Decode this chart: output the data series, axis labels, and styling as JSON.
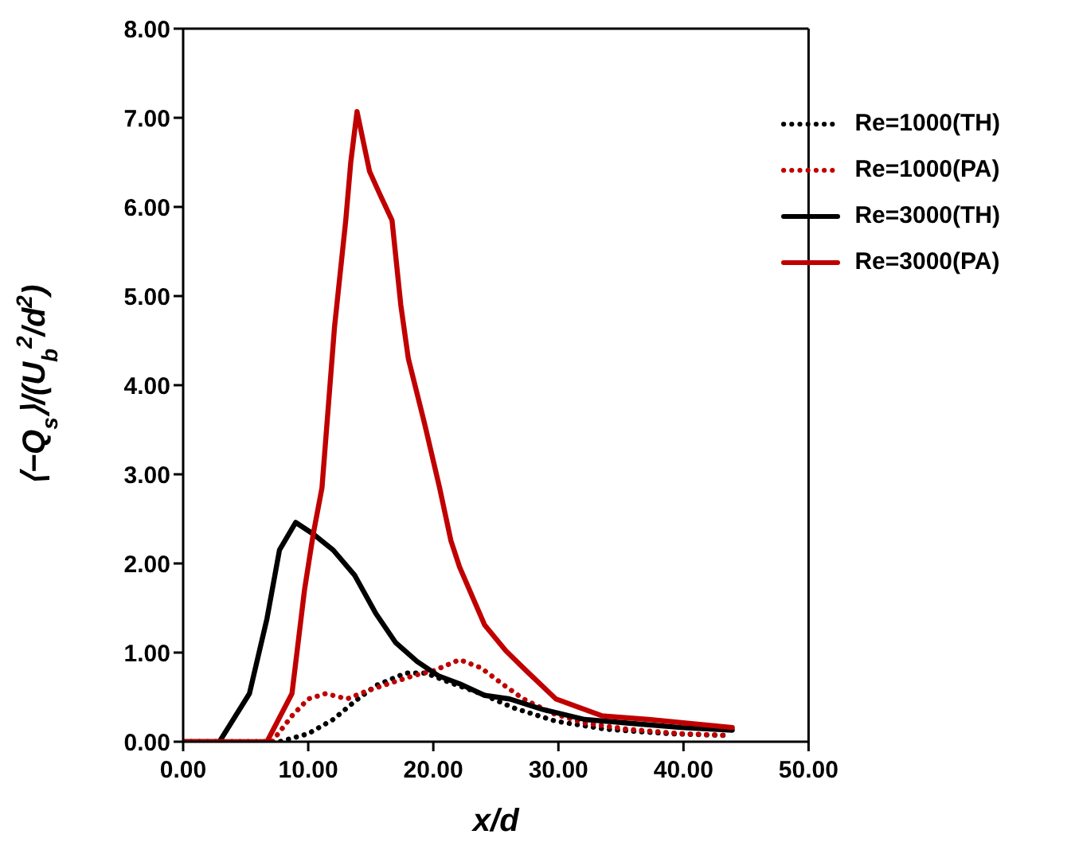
{
  "chart_data": {
    "type": "line",
    "xlabel": "x/d",
    "ylabel": "⟨−Q$_{s}$⟩/(U$_{b}$$^{2}$/d$^{2}$)",
    "xlim": [
      0,
      50
    ],
    "xticks": [
      {
        "value": 0,
        "label": "0.00"
      },
      {
        "value": 10,
        "label": "10.00"
      },
      {
        "value": 20,
        "label": "20.00"
      },
      {
        "value": 30,
        "label": "30.00"
      },
      {
        "value": 40,
        "label": "40.00"
      },
      {
        "value": 50,
        "label": "50.00"
      }
    ],
    "ylim": [
      0,
      8
    ],
    "yticks": [
      {
        "value": 0,
        "label": "0.00"
      },
      {
        "value": 1,
        "label": "1.00"
      },
      {
        "value": 2,
        "label": "2.00"
      },
      {
        "value": 3,
        "label": "3.00"
      },
      {
        "value": 4,
        "label": "4.00"
      },
      {
        "value": 5,
        "label": "5.00"
      },
      {
        "value": 6,
        "label": "6.00"
      },
      {
        "value": 7,
        "label": "7.00"
      },
      {
        "value": 8,
        "label": "8.00"
      }
    ],
    "legend": "top right",
    "marker": "none",
    "series": [
      {
        "name": "Re=1000(TH)",
        "color": "#000000",
        "line_style": "dotted",
        "x": [
          0,
          7.7,
          10.0,
          12.0,
          13.7,
          15.4,
          17.8,
          19.4,
          21.4,
          23.8,
          26.4,
          29.8,
          33.8,
          38.9,
          43.6
        ],
        "values": [
          0,
          0,
          0.09,
          0.25,
          0.45,
          0.63,
          0.77,
          0.77,
          0.66,
          0.54,
          0.38,
          0.23,
          0.14,
          0.09,
          0.07
        ]
      },
      {
        "name": "Re=1000(PA)",
        "color": "#c00000",
        "line_style": "dotted",
        "x": [
          0,
          7.1,
          8.7,
          10.0,
          11.4,
          13.1,
          14.7,
          16.4,
          18.4,
          20.1,
          22.1,
          23.8,
          25.5,
          27.2,
          29.5,
          32.1,
          35.5,
          39.8,
          43.6
        ],
        "values": [
          0,
          0,
          0.29,
          0.48,
          0.54,
          0.48,
          0.57,
          0.65,
          0.74,
          0.8,
          0.92,
          0.83,
          0.65,
          0.48,
          0.32,
          0.21,
          0.14,
          0.09,
          0.07
        ]
      },
      {
        "name": "Re=3000(TH)",
        "color": "#000000",
        "line_style": "solid",
        "x": [
          0,
          2.9,
          5.3,
          6.7,
          7.7,
          9.0,
          10.4,
          12.0,
          13.7,
          15.4,
          17.0,
          18.7,
          20.4,
          22.1,
          24.1,
          26.1,
          28.8,
          32.1,
          35.5,
          39.8,
          43.9
        ],
        "values": [
          0,
          0,
          0.54,
          1.38,
          2.15,
          2.46,
          2.33,
          2.15,
          1.87,
          1.44,
          1.11,
          0.9,
          0.74,
          0.65,
          0.52,
          0.48,
          0.36,
          0.25,
          0.21,
          0.16,
          0.13
        ]
      },
      {
        "name": "Re=3000(PA)",
        "color": "#c00000",
        "line_style": "solid",
        "x": [
          0,
          6.7,
          8.7,
          9.7,
          10.4,
          11.1,
          12.1,
          13.0,
          13.4,
          13.9,
          14.9,
          15.7,
          16.7,
          17.4,
          18.0,
          19.3,
          20.5,
          21.4,
          22.1,
          24.1,
          25.8,
          27.4,
          29.8,
          33.5,
          37.2,
          43.9
        ],
        "values": [
          0,
          0,
          0.54,
          1.7,
          2.33,
          2.85,
          4.65,
          5.85,
          6.5,
          7.07,
          6.4,
          6.15,
          5.85,
          4.9,
          4.3,
          3.57,
          2.85,
          2.26,
          1.96,
          1.31,
          1.02,
          0.8,
          0.48,
          0.29,
          0.25,
          0.16
        ]
      }
    ]
  }
}
